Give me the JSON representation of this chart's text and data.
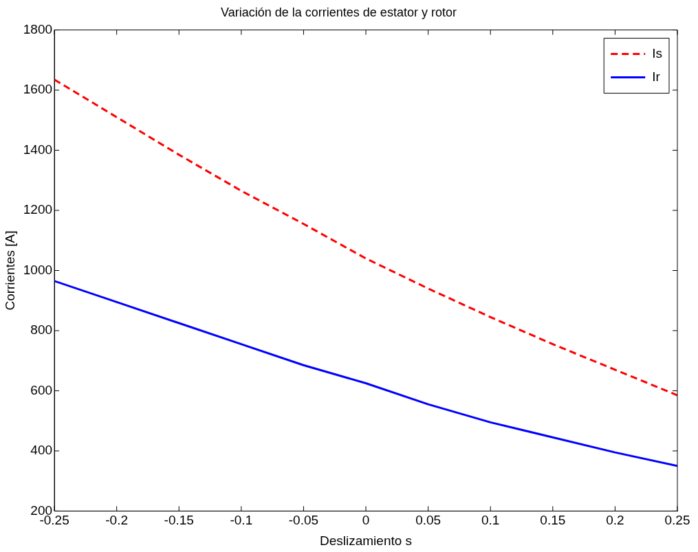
{
  "chart_data": {
    "type": "line",
    "title": "Variación de la corrientes de estator y rotor",
    "xlabel": "Deslizamiento s",
    "ylabel": "Corrientes [A]",
    "x": [
      -0.25,
      -0.2,
      -0.15,
      -0.1,
      -0.05,
      0,
      0.05,
      0.1,
      0.15,
      0.2,
      0.25
    ],
    "series": [
      {
        "name": "Is",
        "color": "#ff0000",
        "line_style": "dashed",
        "values": [
          1635,
          1510,
          1385,
          1265,
          1155,
          1040,
          940,
          845,
          755,
          670,
          585
        ]
      },
      {
        "name": "Ir",
        "color": "#0000ff",
        "line_style": "solid",
        "values": [
          965,
          895,
          825,
          755,
          685,
          625,
          555,
          495,
          445,
          395,
          350
        ]
      }
    ],
    "xlim": [
      -0.25,
      0.25
    ],
    "xticks": [
      -0.25,
      -0.2,
      -0.15,
      -0.1,
      -0.05,
      0,
      0.05,
      0.1,
      0.15,
      0.2,
      0.25
    ],
    "ylim": [
      200,
      1800
    ],
    "yticks": [
      200,
      400,
      600,
      800,
      1000,
      1200,
      1400,
      1600,
      1800
    ],
    "grid": false,
    "legend": "top right",
    "marker": "none"
  }
}
